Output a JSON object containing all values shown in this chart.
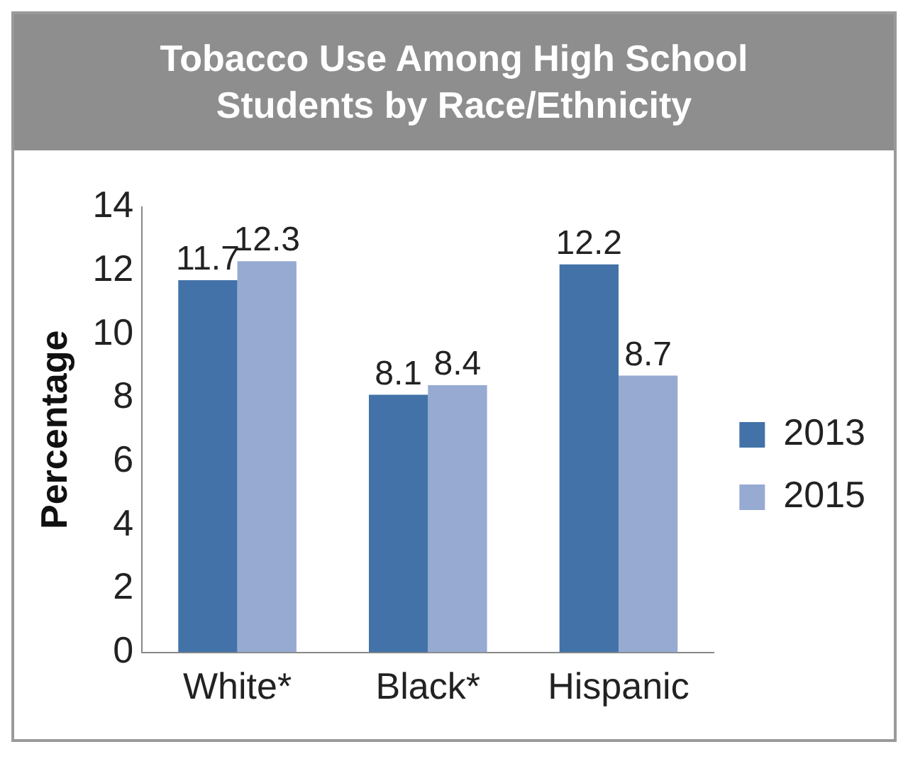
{
  "chart_data": {
    "type": "bar",
    "title": "Tobacco Use Among High School Students by Race/Ethnicity",
    "ylabel": "Percentage",
    "categories": [
      "White*",
      "Black*",
      "Hispanic"
    ],
    "series": [
      {
        "name": "2013",
        "color": "#4272a8",
        "values": [
          11.7,
          8.1,
          12.2
        ]
      },
      {
        "name": "2015",
        "color": "#96aad2",
        "values": [
          12.3,
          8.4,
          8.7
        ]
      }
    ],
    "ylim": [
      0,
      14
    ],
    "yticks": [
      0,
      2,
      4,
      6,
      8,
      10,
      12,
      14
    ],
    "grid": false,
    "legend": "right",
    "data_labels": true
  }
}
